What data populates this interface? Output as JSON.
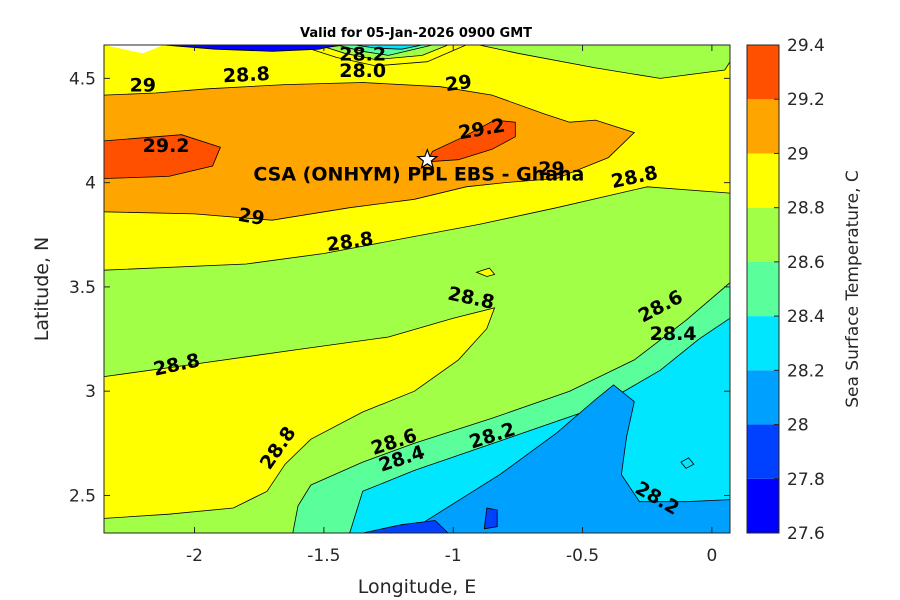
{
  "chart_data": {
    "type": "contour",
    "title": "Valid for 05-Jan-2026 0900 GMT",
    "xlabel": "Longitude, E",
    "ylabel": "Latitude, N",
    "xlim": [
      -2.35,
      0.07
    ],
    "ylim": [
      2.32,
      4.66
    ],
    "xticks": [
      -2,
      -1.5,
      -1,
      -0.5,
      0
    ],
    "xtick_labels": [
      "-2",
      "-1.5",
      "-1",
      "-0.5",
      "0"
    ],
    "yticks": [
      2.5,
      3,
      3.5,
      4,
      4.5
    ],
    "ytick_labels": [
      "2.5",
      "3",
      "3.5",
      "4",
      "4.5"
    ],
    "colorbar": {
      "label": "Sea Surface Temperature, C",
      "levels": [
        27.6,
        27.8,
        28,
        28.2,
        28.4,
        28.6,
        28.8,
        29,
        29.2,
        29.4
      ],
      "tick_labels": [
        "27.6",
        "27.8",
        "28",
        "28.2",
        "28.4",
        "28.6",
        "28.8",
        "29",
        "29.2",
        "29.4"
      ],
      "colors": [
        "#0000ff",
        "#0040ff",
        "#00a0ff",
        "#00e6ff",
        "#5aff9b",
        "#a0ff46",
        "#ffff00",
        "#ffa500",
        "#ff5000"
      ]
    },
    "site": {
      "name": "CSA (ONHYM) PPL EBS - Ghana",
      "lon": -1.1,
      "lat": 4.11
    },
    "contour_labels": [
      {
        "text": "28.2",
        "lon": -1.35,
        "lat": 4.62,
        "angle": 0
      },
      {
        "text": "28.0",
        "lon": -1.35,
        "lat": 4.54,
        "angle": 0
      },
      {
        "text": "28.8",
        "lon": -1.8,
        "lat": 4.52,
        "angle": -3
      },
      {
        "text": "29",
        "lon": -2.2,
        "lat": 4.47,
        "angle": 0
      },
      {
        "text": "29",
        "lon": -0.98,
        "lat": 4.48,
        "angle": -8
      },
      {
        "text": "29.2",
        "lon": -2.11,
        "lat": 4.18,
        "angle": 0
      },
      {
        "text": "29.2",
        "lon": -0.89,
        "lat": 4.26,
        "angle": -10
      },
      {
        "text": "29",
        "lon": -0.62,
        "lat": 4.07,
        "angle": 0
      },
      {
        "text": "28.8",
        "lon": -0.3,
        "lat": 4.03,
        "angle": -12
      },
      {
        "text": "29",
        "lon": -1.78,
        "lat": 3.84,
        "angle": 10
      },
      {
        "text": "28.8",
        "lon": -1.4,
        "lat": 3.72,
        "angle": -8
      },
      {
        "text": "28.8",
        "lon": -0.93,
        "lat": 3.45,
        "angle": 12
      },
      {
        "text": "28.6",
        "lon": -0.2,
        "lat": 3.41,
        "angle": -28
      },
      {
        "text": "28.4",
        "lon": -0.15,
        "lat": 3.28,
        "angle": 0
      },
      {
        "text": "28.8",
        "lon": -2.07,
        "lat": 3.13,
        "angle": -12
      },
      {
        "text": "28.8",
        "lon": -1.68,
        "lat": 2.73,
        "angle": -55
      },
      {
        "text": "28.6",
        "lon": -1.23,
        "lat": 2.76,
        "angle": -18
      },
      {
        "text": "28.4",
        "lon": -1.2,
        "lat": 2.68,
        "angle": -18
      },
      {
        "text": "28.2",
        "lon": -0.85,
        "lat": 2.79,
        "angle": -18
      },
      {
        "text": "28.2",
        "lon": -0.21,
        "lat": 2.49,
        "angle": 30
      }
    ],
    "contour_regions": [
      {
        "level": 28.6,
        "lon": [
          -2.35,
          0.07,
          0.07,
          -2.35
        ],
        "lat": [
          2.32,
          2.32,
          4.66,
          4.66
        ]
      },
      {
        "level": 28.8,
        "lon": [
          -2.35,
          -0.9,
          -0.75,
          -0.45,
          -0.2,
          0.05,
          0.07,
          0.07,
          -0.25,
          -0.6,
          -0.9,
          -1.2,
          -1.5,
          -1.8,
          -2.35
        ],
        "lat": [
          4.66,
          4.66,
          4.62,
          4.55,
          4.5,
          4.54,
          4.58,
          3.95,
          3.98,
          3.88,
          3.8,
          3.73,
          3.66,
          3.61,
          3.58
        ]
      },
      {
        "level": 28.8,
        "lon": [
          -2.35,
          -2.0,
          -1.6,
          -1.25,
          -1.0,
          -0.84,
          -0.87,
          -0.98,
          -1.15,
          -1.35,
          -1.55,
          -1.65,
          -1.72,
          -1.85,
          -2.1,
          -2.35
        ],
        "lat": [
          3.07,
          3.13,
          3.2,
          3.26,
          3.35,
          3.4,
          3.3,
          3.15,
          3.0,
          2.9,
          2.77,
          2.65,
          2.52,
          2.44,
          2.41,
          2.39
        ]
      },
      {
        "level": 29.0,
        "lon": [
          -2.35,
          -2.15,
          -1.95,
          -1.65,
          -1.35,
          -1.05,
          -0.85,
          -0.65,
          -0.55,
          -0.45,
          -0.3,
          -0.4,
          -0.5,
          -0.6,
          -0.8,
          -0.95,
          -1.15,
          -1.4,
          -1.7,
          -2.0,
          -2.35
        ],
        "lat": [
          4.42,
          4.43,
          4.45,
          4.47,
          4.48,
          4.46,
          4.42,
          4.33,
          4.29,
          4.3,
          4.24,
          4.12,
          4.07,
          4.02,
          4.0,
          3.98,
          3.92,
          3.88,
          3.82,
          3.85,
          3.86
        ]
      },
      {
        "level": 29.2,
        "lon": [
          -2.35,
          -2.05,
          -1.9,
          -1.93,
          -2.1,
          -2.35
        ],
        "lat": [
          4.2,
          4.23,
          4.17,
          4.08,
          4.03,
          4.02
        ]
      },
      {
        "level": 29.2,
        "lon": [
          -1.08,
          -0.96,
          -0.84,
          -0.76,
          -0.76,
          -0.85,
          -0.98,
          -1.1
        ],
        "lat": [
          4.15,
          4.22,
          4.3,
          4.29,
          4.22,
          4.16,
          4.11,
          4.1
        ]
      },
      {
        "level": 28.4,
        "lon": [
          -1.55,
          -1.35,
          -1.15,
          -0.85,
          -0.55,
          -0.3,
          -0.1,
          0.07,
          0.07,
          -1.62,
          -1.6
        ],
        "lat": [
          2.55,
          2.66,
          2.75,
          2.87,
          3.0,
          3.15,
          3.34,
          3.52,
          2.32,
          2.32,
          2.45
        ]
      },
      {
        "level": 28.2,
        "lon": [
          -1.35,
          -1.15,
          -0.8,
          -0.45,
          -0.2,
          -0.05,
          0.07,
          0.07,
          -1.4
        ],
        "lat": [
          2.52,
          2.62,
          2.77,
          2.92,
          3.1,
          3.25,
          3.35,
          2.32,
          2.32
        ]
      },
      {
        "level": 28.0,
        "lon": [
          -0.82,
          -0.6,
          -0.45,
          -0.38,
          -0.3,
          -0.33,
          -0.35,
          -0.28,
          -0.1,
          0.07,
          0.07,
          -1.18
        ],
        "lat": [
          2.6,
          2.8,
          2.96,
          3.03,
          2.95,
          2.78,
          2.6,
          2.47,
          2.47,
          2.48,
          2.32,
          2.32
        ]
      },
      {
        "level": 27.8,
        "lon": [
          -1.35,
          -1.2,
          -1.07,
          -1.02,
          -1.2
        ],
        "lat": [
          2.32,
          2.36,
          2.38,
          2.32,
          2.32
        ]
      },
      {
        "level": 27.8,
        "lon": [
          -0.88,
          -0.83,
          -0.83,
          -0.87
        ],
        "lat": [
          2.34,
          2.35,
          2.43,
          2.44
        ]
      },
      {
        "level": 28.8,
        "lon": [
          -0.91,
          -0.86,
          -0.84,
          -0.87
        ],
        "lat": [
          3.57,
          3.59,
          3.56,
          3.55
        ]
      },
      {
        "level": 28.2,
        "lon": [
          -0.12,
          -0.09,
          -0.07,
          -0.1
        ],
        "lat": [
          2.66,
          2.68,
          2.65,
          2.63
        ]
      },
      {
        "level": 28.8,
        "lon": [
          -1.6,
          -1.45,
          -1.3,
          -1.1,
          -0.95
        ],
        "lat": [
          4.66,
          4.6,
          4.56,
          4.58,
          4.66
        ]
      },
      {
        "level": 28.6,
        "lon": [
          -1.52,
          -1.42,
          -1.3,
          -1.12,
          -1.02
        ],
        "lat": [
          4.66,
          4.62,
          4.59,
          4.61,
          4.66
        ]
      },
      {
        "level": 28.4,
        "lon": [
          -1.45,
          -1.35,
          -1.25,
          -1.08
        ],
        "lat": [
          4.66,
          4.63,
          4.61,
          4.66
        ]
      },
      {
        "level": 28.2,
        "lon": [
          -1.38,
          -1.3,
          -1.2,
          -1.12
        ],
        "lat": [
          4.66,
          4.645,
          4.64,
          4.66
        ]
      },
      {
        "level": 27.6,
        "lon": [
          -2.12,
          -1.92,
          -1.7,
          -1.52,
          -1.48,
          -1.42
        ],
        "lat": [
          4.66,
          4.64,
          4.63,
          4.64,
          4.65,
          4.66
        ]
      }
    ]
  }
}
